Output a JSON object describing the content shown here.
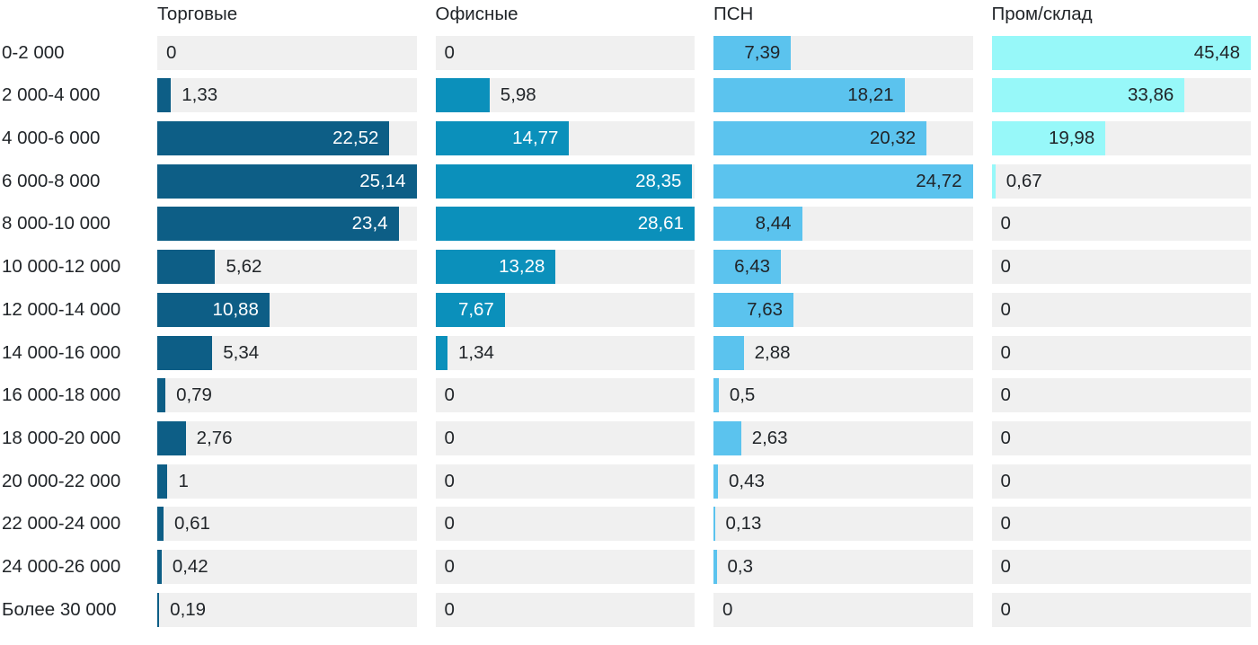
{
  "chart_data": {
    "type": "bar",
    "orientation": "horizontal",
    "title": "",
    "legend_position": "column headers above each panel",
    "grid": false,
    "scaling_hint": "each column scaled independently so its max value fills the full track width",
    "track_color": "#f0f0f0",
    "text_color": "#212529",
    "categories": [
      "0-2 000",
      "2 000-4 000",
      "4 000-6 000",
      "6 000-8 000",
      "8 000-10 000",
      "10 000-12 000",
      "12 000-14 000",
      "14 000-16 000",
      "16 000-18 000",
      "18 000-20 000",
      "20 000-22 000",
      "22 000-24 000",
      "24 000-26 000",
      "Более 30 000"
    ],
    "series": [
      {
        "name": "Торговые",
        "color": "#0d5e86",
        "label_inside_color": "#ffffff",
        "values": [
          0,
          1.33,
          22.52,
          25.14,
          23.4,
          5.62,
          10.88,
          5.34,
          0.79,
          2.76,
          1,
          0.61,
          0.42,
          0.19
        ],
        "labels": [
          "0",
          "1,33",
          "22,52",
          "25,14",
          "23,4",
          "5,62",
          "10,88",
          "5,34",
          "0,79",
          "2,76",
          "1",
          "0,61",
          "0,42",
          "0,19"
        ]
      },
      {
        "name": "Офисные",
        "color": "#0b90bb",
        "label_inside_color": "#ffffff",
        "values": [
          0,
          5.98,
          14.77,
          28.35,
          28.61,
          13.28,
          7.67,
          1.34,
          0,
          0,
          0,
          0,
          0,
          0
        ],
        "labels": [
          "0",
          "5,98",
          "14,77",
          "28,35",
          "28,61",
          "13,28",
          "7,67",
          "1,34",
          "0",
          "0",
          "0",
          "0",
          "0",
          "0"
        ]
      },
      {
        "name": "ПСН",
        "color": "#5bc3ee",
        "label_inside_color": "#212529",
        "values": [
          7.39,
          18.21,
          20.32,
          24.72,
          8.44,
          6.43,
          7.63,
          2.88,
          0.5,
          2.63,
          0.43,
          0.13,
          0.3,
          0
        ],
        "labels": [
          "7,39",
          "18,21",
          "20,32",
          "24,72",
          "8,44",
          "6,43",
          "7,63",
          "2,88",
          "0,5",
          "2,63",
          "0,43",
          "0,13",
          "0,3",
          "0"
        ]
      },
      {
        "name": "Пром/склад",
        "color": "#97f8f9",
        "label_inside_color": "#212529",
        "values": [
          45.48,
          33.86,
          19.98,
          0.67,
          0,
          0,
          0,
          0,
          0,
          0,
          0,
          0,
          0,
          0
        ],
        "labels": [
          "45,48",
          "33,86",
          "19,98",
          "0,67",
          "0",
          "0",
          "0",
          "0",
          "0",
          "0",
          "0",
          "0",
          "0",
          "0"
        ]
      }
    ]
  }
}
